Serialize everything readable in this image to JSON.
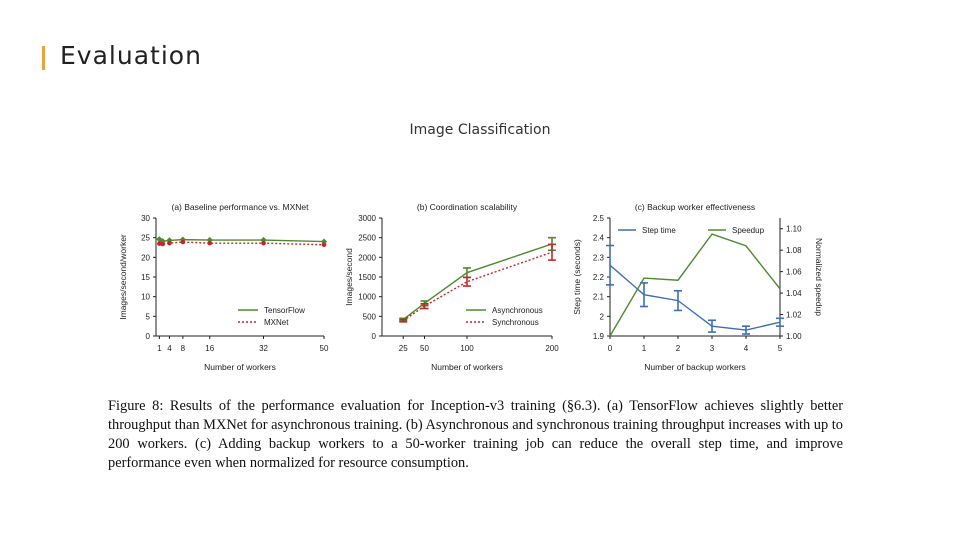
{
  "slide": {
    "title": "Evaluation",
    "subtitle": "Image Classification",
    "caption": "Figure 8: Results of the performance evaluation for Inception-v3 training (§6.3). (a) TensorFlow achieves slightly better throughput than MXNet for asynchronous training. (b) Asynchronous and synchronous training throughput increases with up to 200 workers. (c) Adding backup workers to a 50-worker training job can reduce the overall step time, and improve performance even when normalized for resource consumption."
  },
  "colors": {
    "accent": "#e8a33c",
    "green": "#4e8a2e",
    "red": "#c0282d",
    "blue": "#3e6fb0"
  },
  "chart_data": [
    {
      "type": "line",
      "title": "(a) Baseline performance vs. MXNet",
      "xlabel": "Number of workers",
      "ylabel": "Images/second/worker",
      "xticks": [
        1,
        4,
        8,
        16,
        32,
        50
      ],
      "yticks": [
        0,
        5,
        10,
        15,
        20,
        25,
        30
      ],
      "xlim": [
        0,
        50
      ],
      "ylim": [
        0,
        30
      ],
      "legend": "bottom-right",
      "series": [
        {
          "name": "TensorFlow",
          "color": "#4e8a2e",
          "style": "solid",
          "marker": "diamond",
          "x": [
            1,
            2,
            4,
            8,
            16,
            32,
            50
          ],
          "y": [
            24.6,
            24.1,
            24.3,
            24.5,
            24.4,
            24.4,
            24.0
          ]
        },
        {
          "name": "MXNet",
          "color": "#c0282d",
          "style": "dotted",
          "marker": "circle",
          "x": [
            1,
            2,
            4,
            8,
            16,
            32,
            50
          ],
          "y": [
            23.5,
            23.4,
            23.6,
            23.9,
            23.6,
            23.6,
            23.2
          ]
        }
      ]
    },
    {
      "type": "line",
      "title": "(b) Coordination scalability",
      "xlabel": "Number of workers",
      "ylabel": "Images/second",
      "xticks": [
        25,
        50,
        100,
        200
      ],
      "yticks": [
        0,
        500,
        1000,
        1500,
        2000,
        2500,
        3000
      ],
      "xlim": [
        0,
        200
      ],
      "ylim": [
        0,
        3000
      ],
      "legend": "bottom-right",
      "series": [
        {
          "name": "Asynchronous",
          "color": "#4e8a2e",
          "style": "solid",
          "marker": "errorbar",
          "x": [
            25,
            50,
            100,
            200
          ],
          "y": [
            420,
            830,
            1610,
            2340
          ],
          "err": [
            30,
            60,
            120,
            160
          ]
        },
        {
          "name": "Synchronous",
          "color": "#c0282d",
          "style": "dotted",
          "marker": "errorbar",
          "x": [
            25,
            50,
            100,
            200
          ],
          "y": [
            390,
            760,
            1380,
            2130
          ],
          "err": [
            30,
            60,
            110,
            200
          ]
        }
      ]
    },
    {
      "type": "line",
      "title": "(c) Backup worker effectiveness",
      "xlabel": "Number of backup workers",
      "ylabel": "Step time (seconds)",
      "ylabel_right": "Normalized speedup",
      "xticks": [
        0,
        1,
        2,
        3,
        4,
        5
      ],
      "yticks": [
        1.9,
        2.0,
        2.1,
        2.2,
        2.3,
        2.4,
        2.5
      ],
      "yticks_right": [
        1.0,
        1.02,
        1.04,
        1.06,
        1.08,
        1.1
      ],
      "xlim": [
        0,
        5
      ],
      "ylim": [
        1.9,
        2.5
      ],
      "ylim_right": [
        1.0,
        1.11
      ],
      "legend": "top",
      "series": [
        {
          "name": "Step time",
          "color": "#3e6fb0",
          "axis": "left",
          "marker": "errorbar",
          "x": [
            0,
            1,
            2,
            3,
            4,
            5
          ],
          "y": [
            2.26,
            2.11,
            2.08,
            1.95,
            1.93,
            1.97
          ],
          "err": [
            0.1,
            0.06,
            0.05,
            0.03,
            0.02,
            0.02
          ]
        },
        {
          "name": "Speedup",
          "color": "#4e8a2e",
          "axis": "right",
          "marker": "none",
          "x": [
            0,
            1,
            2,
            3,
            4,
            5
          ],
          "y": [
            1.0,
            1.054,
            1.052,
            1.095,
            1.084,
            1.044
          ]
        }
      ]
    }
  ]
}
